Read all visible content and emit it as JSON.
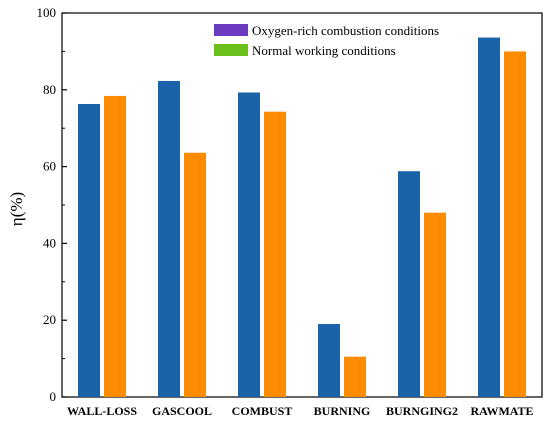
{
  "chart_data": {
    "type": "bar",
    "title": "",
    "xlabel": "",
    "ylabel": "η(%)",
    "ylim": [
      0,
      100
    ],
    "yticks": [
      0,
      20,
      40,
      60,
      80,
      100
    ],
    "categories": [
      "WALL-LOSS",
      "GASCOOL",
      "COMBUST",
      "BURNING",
      "BURNGING2",
      "RAWMATE"
    ],
    "series": [
      {
        "name": "Oxygen-rich combustion conditions",
        "values": [
          76.3,
          82.3,
          79.3,
          19.0,
          58.8,
          93.6
        ],
        "color": "#1a63a8",
        "legend_swatch": "#6a3bbf"
      },
      {
        "name": "Normal working conditions",
        "values": [
          78.4,
          63.6,
          74.3,
          10.5,
          48.0,
          90.0
        ],
        "color": "#ff8c00",
        "legend_swatch": "#6abf1a"
      }
    ],
    "legend_position": "top-center",
    "grid": false
  }
}
